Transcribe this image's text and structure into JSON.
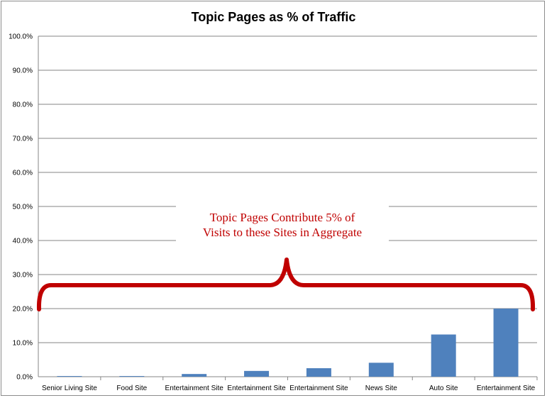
{
  "chart_data": {
    "type": "bar",
    "title": "Topic Pages as % of Traffic",
    "xlabel": "",
    "ylabel": "",
    "categories": [
      "Senior Living Site",
      "Food Site",
      "Entertainment Site",
      "Entertainment Site",
      "Entertainment Site",
      "News Site",
      "Auto Site",
      "Entertainment Site"
    ],
    "values": [
      0.2,
      0.2,
      0.8,
      1.7,
      2.5,
      4.1,
      12.4,
      20.0
    ],
    "ylim": [
      0,
      100
    ],
    "yticks": [
      "0.0%",
      "10.0%",
      "20.0%",
      "30.0%",
      "40.0%",
      "50.0%",
      "60.0%",
      "70.0%",
      "80.0%",
      "90.0%",
      "100.0%"
    ],
    "grid": true,
    "legend": "none",
    "bar_color": "#4f81bd",
    "annotation": {
      "lines": [
        "Topic Pages Contribute 5% of",
        "Visits to these Sites in Aggregate"
      ],
      "color": "#c00000"
    }
  }
}
